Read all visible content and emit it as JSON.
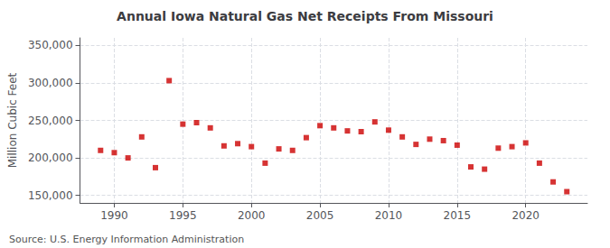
{
  "chart_data": {
    "type": "scatter",
    "title": "Annual Iowa Natural Gas Net Receipts From Missouri",
    "ylabel": "Million Cubic Feet",
    "annotations": [
      "Source: U.S. Energy Information Administration"
    ],
    "x": [
      1989,
      1990,
      1991,
      1992,
      1993,
      1994,
      1995,
      1996,
      1997,
      1998,
      1999,
      2000,
      2001,
      2002,
      2003,
      2004,
      2005,
      2006,
      2007,
      2008,
      2009,
      2010,
      2011,
      2012,
      2013,
      2014,
      2015,
      2016,
      2017,
      2018,
      2019,
      2020,
      2021,
      2022,
      2023
    ],
    "values": [
      210000,
      207000,
      200000,
      228000,
      187000,
      303000,
      245000,
      247000,
      240000,
      216000,
      219000,
      215000,
      193000,
      212000,
      210000,
      227000,
      243000,
      240000,
      236000,
      235000,
      248000,
      237000,
      228000,
      218000,
      225000,
      223000,
      217000,
      188000,
      185000,
      213000,
      215000,
      220000,
      193000,
      168000,
      155000
    ],
    "color": "#cc0000",
    "marker": "square",
    "xlim": [
      1987.5,
      2024.5
    ],
    "xticks": [
      1990,
      1995,
      2000,
      2005,
      2010,
      2015,
      2020
    ],
    "ylim": [
      140000,
      360000
    ],
    "yticks": [
      {
        "value": 150000,
        "label": "150,000"
      },
      {
        "value": 200000,
        "label": "200,000"
      },
      {
        "value": 250000,
        "label": "250,000"
      },
      {
        "value": 300000,
        "label": "300,000"
      },
      {
        "value": 350000,
        "label": "350,000"
      }
    ],
    "grid": true
  }
}
